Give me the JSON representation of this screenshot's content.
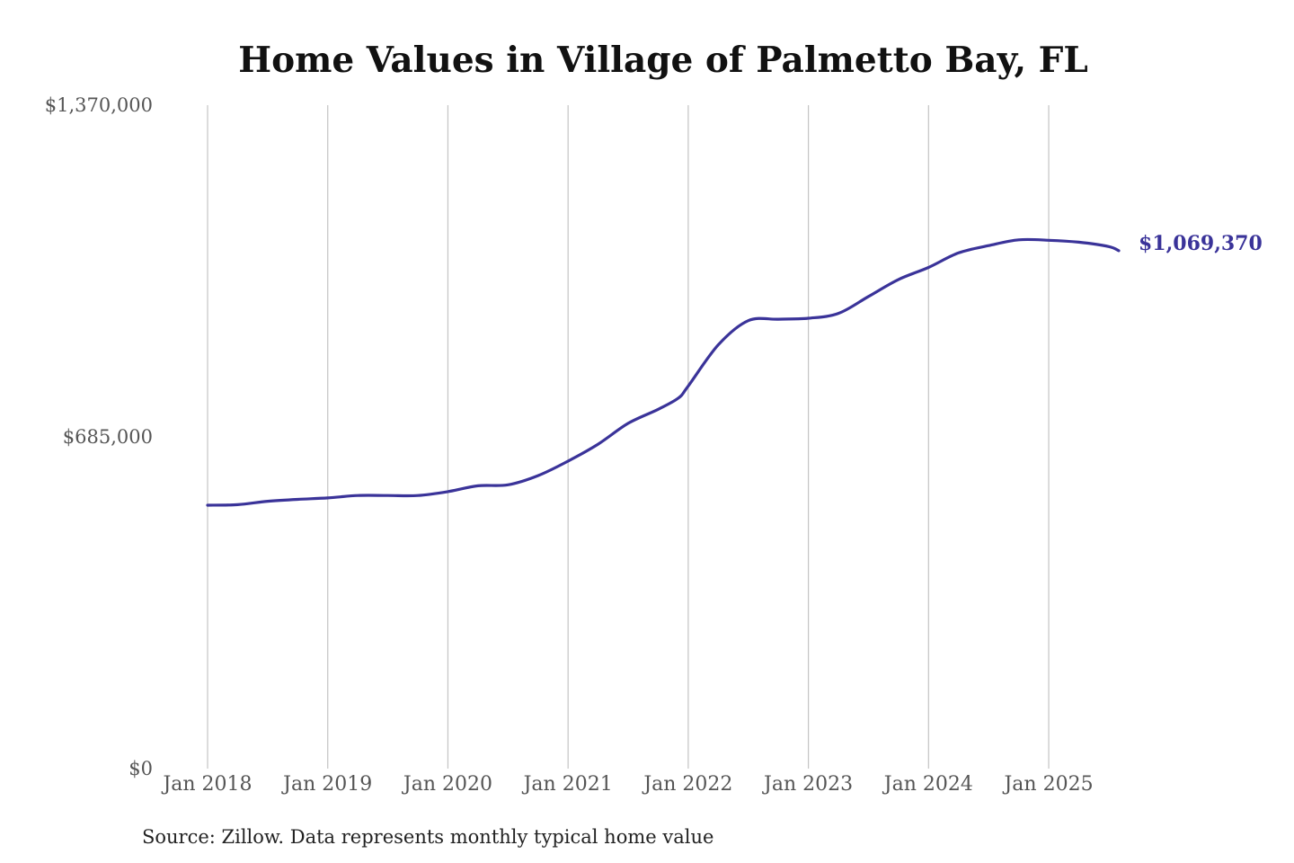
{
  "chart_data": {
    "type": "line",
    "title": "Home Values in Village of Palmetto Bay, FL",
    "xlabel": "",
    "ylabel": "",
    "x_range": [
      2018.0,
      2025.583
    ],
    "ylim": [
      0,
      1370000
    ],
    "y_ticks": [
      {
        "value": 0,
        "label": "$0"
      },
      {
        "value": 685000,
        "label": "$685,000"
      },
      {
        "value": 1370000,
        "label": "$1,370,000"
      }
    ],
    "x_ticks": [
      {
        "value": 2018,
        "label": "Jan 2018"
      },
      {
        "value": 2019,
        "label": "Jan 2019"
      },
      {
        "value": 2020,
        "label": "Jan 2020"
      },
      {
        "value": 2021,
        "label": "Jan 2021"
      },
      {
        "value": 2022,
        "label": "Jan 2022"
      },
      {
        "value": 2023,
        "label": "Jan 2023"
      },
      {
        "value": 2024,
        "label": "Jan 2024"
      },
      {
        "value": 2025,
        "label": "Jan 2025"
      }
    ],
    "grid": {
      "vertical": true,
      "horizontal": false
    },
    "series": [
      {
        "color": "#3a3399",
        "end_label": "$1,069,370",
        "x": [
          2018.0,
          2018.25,
          2018.5,
          2018.75,
          2019.0,
          2019.25,
          2019.5,
          2019.75,
          2020.0,
          2020.25,
          2020.5,
          2020.75,
          2021.0,
          2021.25,
          2021.5,
          2021.75,
          2021.917,
          2022.0,
          2022.25,
          2022.5,
          2022.75,
          2023.0,
          2023.25,
          2023.5,
          2023.75,
          2024.0,
          2024.25,
          2024.5,
          2024.75,
          2025.0,
          2025.25,
          2025.5,
          2025.583
        ],
        "values": [
          544000,
          545000,
          552000,
          556000,
          559000,
          564000,
          564000,
          564000,
          572000,
          584000,
          586000,
          605000,
          635000,
          670000,
          713000,
          742000,
          765000,
          790000,
          875000,
          925000,
          928000,
          930000,
          940000,
          975000,
          1010000,
          1035000,
          1065000,
          1080000,
          1092000,
          1091000,
          1087000,
          1078000,
          1069370
        ]
      }
    ]
  },
  "footer": {
    "source": "Source: Zillow. Data represents monthly typical home value"
  }
}
